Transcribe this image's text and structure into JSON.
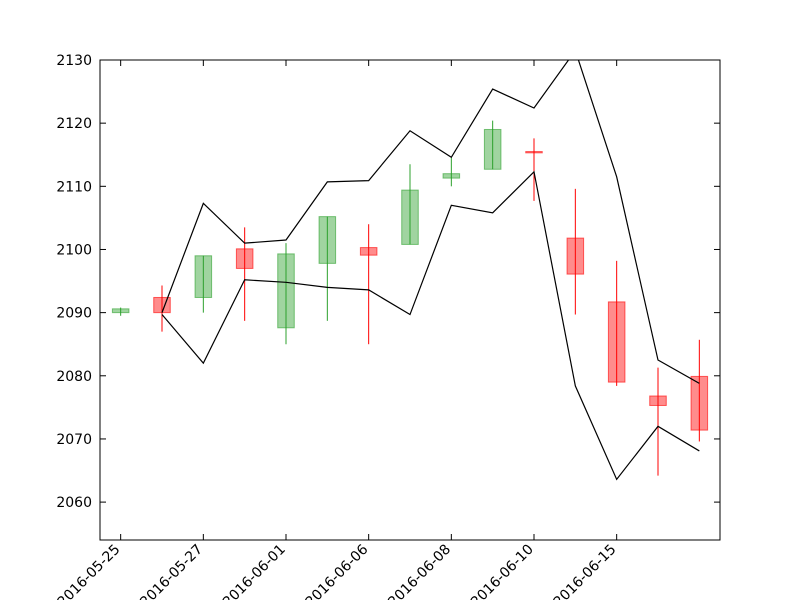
{
  "chart_data": {
    "type": "candlestick",
    "title": "",
    "xlabel": "",
    "ylabel": "",
    "ylim": [
      2054,
      2130
    ],
    "yticks": [
      2060,
      2070,
      2080,
      2090,
      2100,
      2110,
      2120,
      2130
    ],
    "xtick_labels": [
      "2016-05-25",
      "2016-05-27",
      "2016-06-01",
      "2016-06-06",
      "2016-06-08",
      "2016-06-10",
      "2016-06-15"
    ],
    "xtick_positions": [
      0,
      2,
      4,
      6,
      8,
      10,
      12
    ],
    "grid": false,
    "colors": {
      "up": "#2ca02c",
      "down": "#ff0000",
      "band": "#000000"
    },
    "candles": [
      {
        "open": 2090.0,
        "high": 2090.8,
        "low": 2089.5,
        "close": 2090.6
      },
      {
        "open": 2092.4,
        "high": 2094.3,
        "low": 2087.0,
        "close": 2090.0
      },
      {
        "open": 2092.4,
        "high": 2099.0,
        "low": 2090.0,
        "close": 2099.0
      },
      {
        "open": 2100.1,
        "high": 2103.5,
        "low": 2088.7,
        "close": 2097.0
      },
      {
        "open": 2087.6,
        "high": 2101.0,
        "low": 2085.0,
        "close": 2099.3
      },
      {
        "open": 2097.8,
        "high": 2105.2,
        "low": 2088.7,
        "close": 2105.2
      },
      {
        "open": 2100.3,
        "high": 2104.0,
        "low": 2085.0,
        "close": 2099.1
      },
      {
        "open": 2100.8,
        "high": 2113.5,
        "low": 2100.8,
        "close": 2109.4
      },
      {
        "open": 2111.3,
        "high": 2114.5,
        "low": 2110.0,
        "close": 2112.0
      },
      {
        "open": 2112.7,
        "high": 2120.4,
        "low": 2112.7,
        "close": 2119.0
      },
      {
        "open": 2115.5,
        "high": 2117.6,
        "low": 2107.7,
        "close": 2115.3
      },
      {
        "open": 2101.8,
        "high": 2109.6,
        "low": 2089.7,
        "close": 2096.1
      },
      {
        "open": 2091.7,
        "high": 2098.2,
        "low": 2078.4,
        "close": 2079.0
      },
      {
        "open": 2076.8,
        "high": 2081.3,
        "low": 2064.2,
        "close": 2075.3
      },
      {
        "open": 2079.9,
        "high": 2085.7,
        "low": 2069.6,
        "close": 2071.4
      }
    ],
    "upper_band": [
      null,
      2090.0,
      2107.3,
      2101.0,
      2101.5,
      2110.7,
      2110.9,
      2118.8,
      2114.6,
      2125.4,
      2122.4,
      2131.5,
      2111.5,
      2082.5,
      2078.8
    ],
    "lower_band": [
      null,
      2089.7,
      2082.0,
      2095.2,
      2094.8,
      2094.0,
      2093.6,
      2089.7,
      2107.0,
      2105.8,
      2112.3,
      2078.4,
      2063.6,
      2072.0,
      2068.1
    ]
  }
}
